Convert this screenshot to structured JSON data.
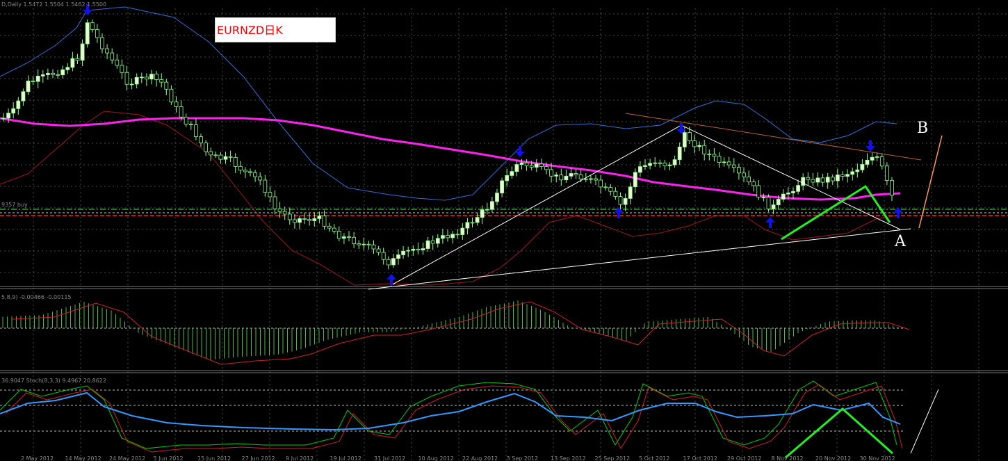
{
  "chart_data": {
    "type": "candlestick",
    "symbol_label": "EURNZD日K",
    "header_text": "D,Daily  1.5472 1.5504 1.5462 1.5500",
    "macd_label": "5,8,9) -0.00466 -0.00115",
    "stoch_label": "36.9047  Stoch(8,3,3) 9.4967 20.8622",
    "price_scale_label": "9357 buy",
    "x_tick_labels": [
      "2 May 2012",
      "14 May 2012",
      "24 May 2012",
      "5 Jun 2012",
      "15 Jun 2012",
      "27 Jun 2012",
      "9 Jul 2012",
      "19 Jul 2012",
      "31 Jul 2012",
      "10 Aug 2012",
      "22 Aug 2012",
      "3 Sep 2012",
      "13 Sep 2012",
      "25 Sep 2012",
      "5 Oct 2012",
      "17 Oct 2012",
      "29 Oct 2012",
      "8 Nov 2012",
      "20 Nov 2012",
      "30 Nov 2012"
    ],
    "annotations": [
      "A",
      "B"
    ],
    "colors": {
      "background": "#000000",
      "grid": "#4a4a4a",
      "bull_candle": "#e8ffd0",
      "bear_candle": "#000000",
      "candle_wick": "#8cff8c",
      "moving_average": "#ff22ee",
      "bollinger_upper": "#2f6fd8",
      "bollinger_lower": "#a01818",
      "macd_hist": "#44bb44",
      "macd_signal": "#cc2222",
      "stoch_main": "#00cc00",
      "stoch_signal": "#cc2222",
      "stoch_blue": "#3399ff",
      "arrow": "#1111ee",
      "pattern": "#22ee22"
    }
  }
}
